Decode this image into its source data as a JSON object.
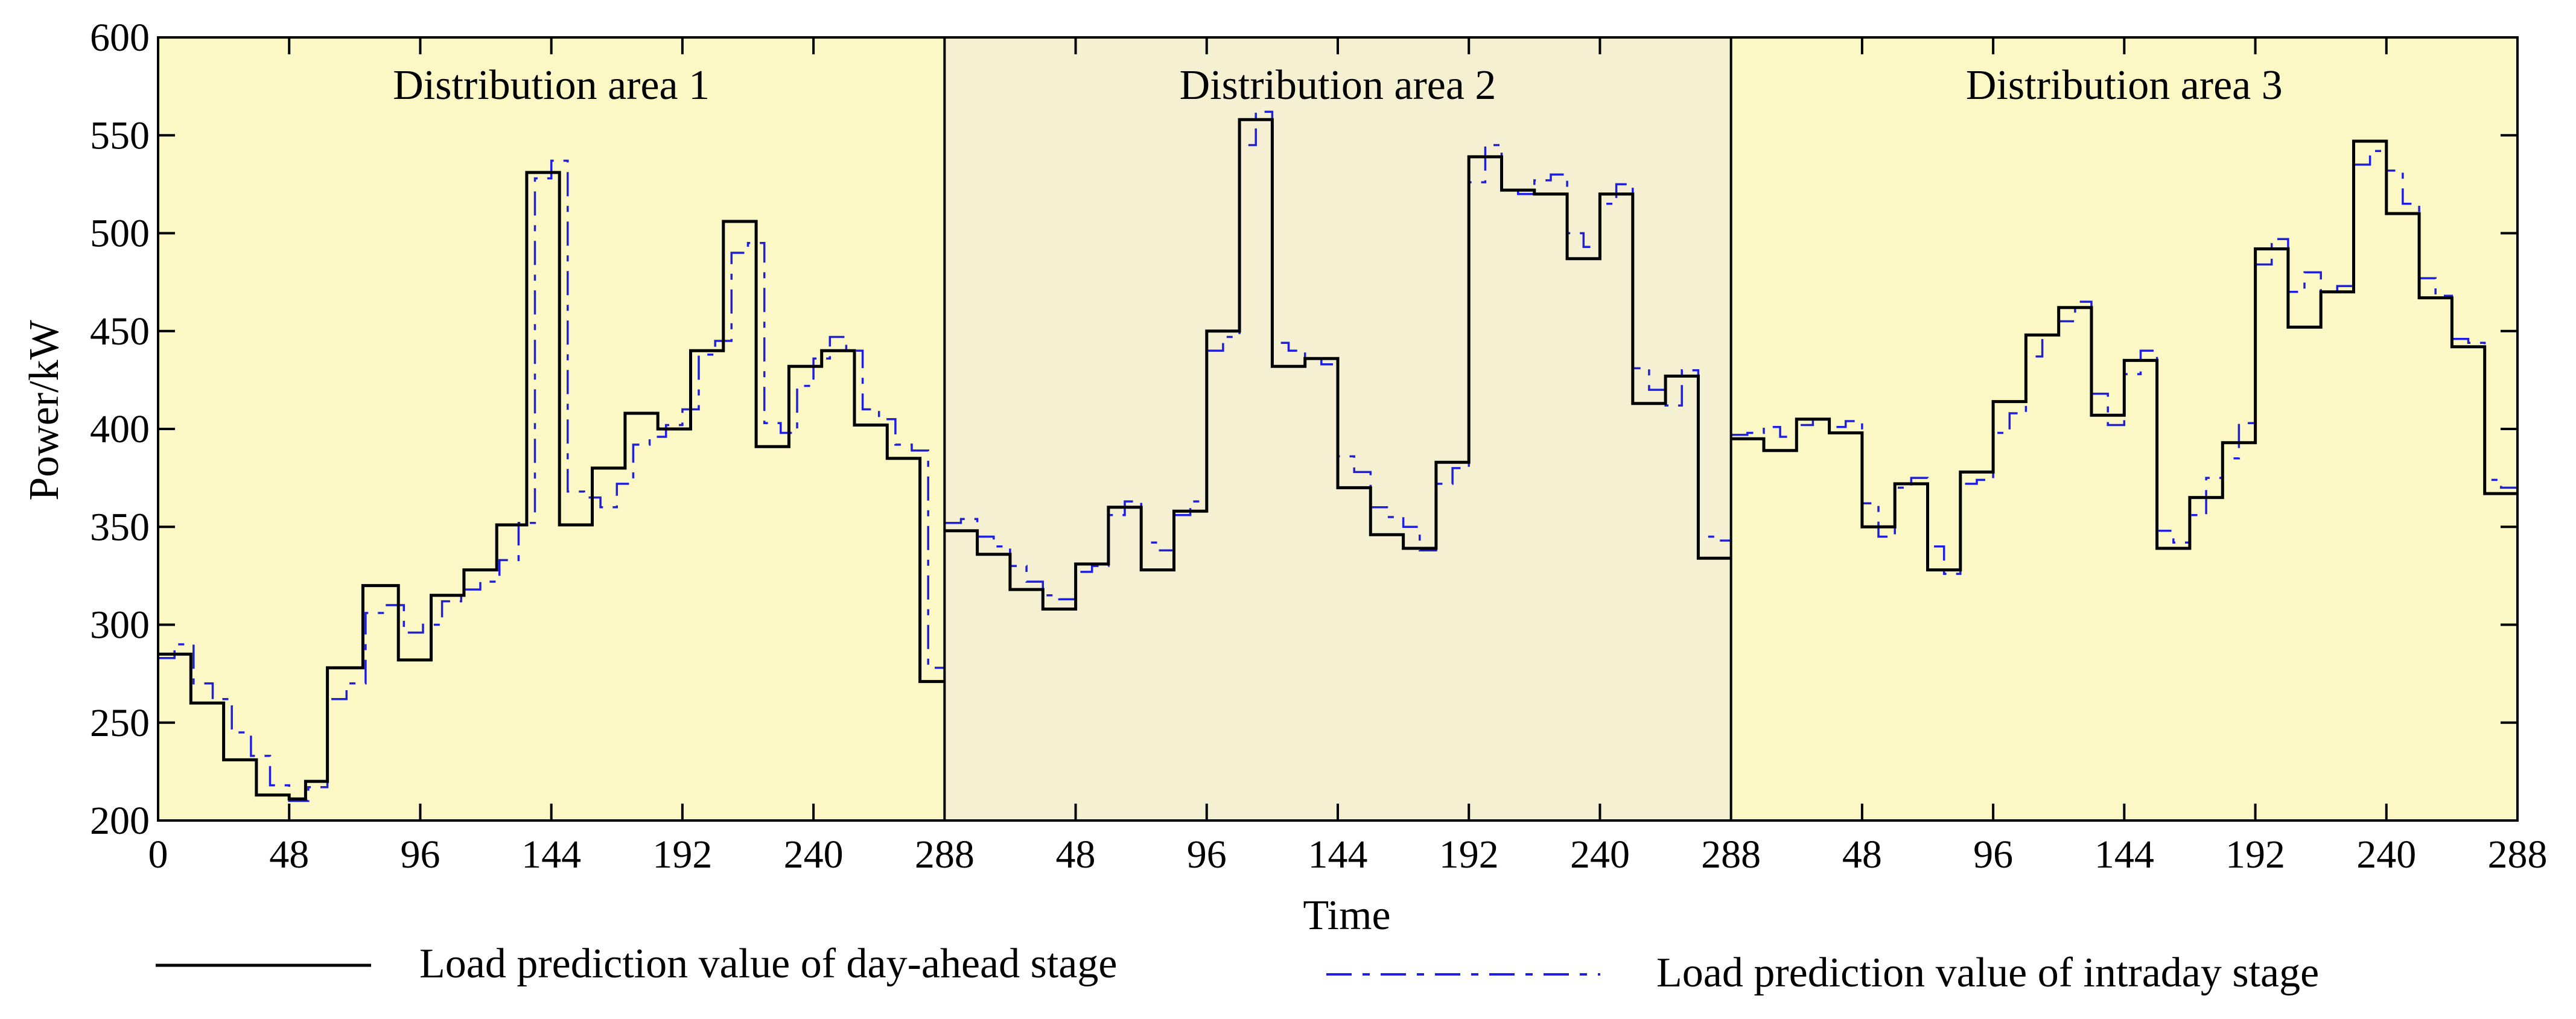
{
  "chart_data": {
    "type": "line",
    "step": true,
    "ylabel": "Power/kW",
    "xlabel": "Time",
    "ylim": [
      200,
      600
    ],
    "yticks": [
      200,
      250,
      300,
      350,
      400,
      450,
      500,
      550,
      600
    ],
    "xlim": [
      0,
      288
    ],
    "xticks": [
      0,
      48,
      96,
      144,
      192,
      240,
      288
    ],
    "grid": false,
    "legend_position": "bottom",
    "colors": {
      "dayahead": "#000000",
      "intraday": "#1f1fe0",
      "panel_light": "#fbf8c6",
      "panel_dark": "#f6f0d2"
    },
    "series_names": [
      "Load prediction value of day-ahead stage",
      "Load prediction value of intraday stage"
    ],
    "panels": [
      {
        "title": "Distribution area 1",
        "dayahead": [
          [
            0,
            285
          ],
          [
            12,
            260
          ],
          [
            24,
            231
          ],
          [
            36,
            213
          ],
          [
            48,
            211
          ],
          [
            54,
            220
          ],
          [
            62,
            278
          ],
          [
            75,
            320
          ],
          [
            88,
            282
          ],
          [
            100,
            315
          ],
          [
            112,
            328
          ],
          [
            124,
            351
          ],
          [
            135,
            531
          ],
          [
            147,
            351
          ],
          [
            159,
            380
          ],
          [
            171,
            408
          ],
          [
            183,
            400
          ],
          [
            195,
            440
          ],
          [
            207,
            506
          ],
          [
            219,
            391
          ],
          [
            231,
            432
          ],
          [
            243,
            440
          ],
          [
            255,
            402
          ],
          [
            267,
            385
          ],
          [
            279,
            271
          ],
          [
            288,
            271
          ]
        ],
        "intraday": [
          [
            0,
            283
          ],
          [
            6,
            290
          ],
          [
            13,
            270
          ],
          [
            20,
            262
          ],
          [
            27,
            245
          ],
          [
            34,
            233
          ],
          [
            41,
            218
          ],
          [
            48,
            210
          ],
          [
            55,
            217
          ],
          [
            62,
            262
          ],
          [
            69,
            270
          ],
          [
            76,
            306
          ],
          [
            83,
            310
          ],
          [
            90,
            296
          ],
          [
            97,
            300
          ],
          [
            104,
            312
          ],
          [
            111,
            318
          ],
          [
            118,
            322
          ],
          [
            125,
            333
          ],
          [
            132,
            352
          ],
          [
            138,
            528
          ],
          [
            144,
            537
          ],
          [
            150,
            368
          ],
          [
            156,
            365
          ],
          [
            162,
            360
          ],
          [
            168,
            372
          ],
          [
            174,
            392
          ],
          [
            180,
            396
          ],
          [
            186,
            402
          ],
          [
            192,
            410
          ],
          [
            198,
            438
          ],
          [
            204,
            445
          ],
          [
            210,
            490
          ],
          [
            216,
            495
          ],
          [
            222,
            403
          ],
          [
            228,
            398
          ],
          [
            234,
            422
          ],
          [
            240,
            436
          ],
          [
            246,
            447
          ],
          [
            252,
            440
          ],
          [
            258,
            410
          ],
          [
            264,
            405
          ],
          [
            270,
            392
          ],
          [
            276,
            389
          ],
          [
            282,
            278
          ],
          [
            288,
            274
          ]
        ]
      },
      {
        "title": "Distribution area 2",
        "dayahead": [
          [
            0,
            348
          ],
          [
            12,
            336
          ],
          [
            24,
            318
          ],
          [
            36,
            308
          ],
          [
            48,
            331
          ],
          [
            60,
            360
          ],
          [
            72,
            328
          ],
          [
            84,
            358
          ],
          [
            96,
            450
          ],
          [
            108,
            558
          ],
          [
            120,
            432
          ],
          [
            132,
            436
          ],
          [
            144,
            370
          ],
          [
            156,
            346
          ],
          [
            168,
            339
          ],
          [
            180,
            383
          ],
          [
            192,
            539
          ],
          [
            204,
            522
          ],
          [
            216,
            520
          ],
          [
            228,
            487
          ],
          [
            240,
            520
          ],
          [
            252,
            413
          ],
          [
            264,
            427
          ],
          [
            276,
            334
          ],
          [
            288,
            334
          ]
        ],
        "intraday": [
          [
            0,
            352
          ],
          [
            6,
            354
          ],
          [
            12,
            345
          ],
          [
            18,
            340
          ],
          [
            24,
            330
          ],
          [
            30,
            322
          ],
          [
            36,
            315
          ],
          [
            42,
            313
          ],
          [
            48,
            327
          ],
          [
            54,
            330
          ],
          [
            60,
            356
          ],
          [
            66,
            363
          ],
          [
            72,
            342
          ],
          [
            78,
            338
          ],
          [
            84,
            356
          ],
          [
            90,
            363
          ],
          [
            96,
            440
          ],
          [
            102,
            447
          ],
          [
            108,
            545
          ],
          [
            114,
            562
          ],
          [
            120,
            444
          ],
          [
            126,
            440
          ],
          [
            132,
            436
          ],
          [
            138,
            433
          ],
          [
            144,
            386
          ],
          [
            150,
            378
          ],
          [
            156,
            360
          ],
          [
            162,
            355
          ],
          [
            168,
            350
          ],
          [
            174,
            338
          ],
          [
            180,
            372
          ],
          [
            186,
            380
          ],
          [
            192,
            526
          ],
          [
            198,
            545
          ],
          [
            204,
            522
          ],
          [
            210,
            520
          ],
          [
            216,
            527
          ],
          [
            222,
            530
          ],
          [
            228,
            500
          ],
          [
            234,
            493
          ],
          [
            240,
            515
          ],
          [
            246,
            525
          ],
          [
            252,
            431
          ],
          [
            258,
            420
          ],
          [
            264,
            412
          ],
          [
            270,
            430
          ],
          [
            276,
            345
          ],
          [
            282,
            343
          ],
          [
            288,
            345
          ]
        ]
      },
      {
        "title": "Distribution area 3",
        "dayahead": [
          [
            0,
            395
          ],
          [
            12,
            389
          ],
          [
            24,
            405
          ],
          [
            36,
            398
          ],
          [
            48,
            350
          ],
          [
            60,
            372
          ],
          [
            72,
            328
          ],
          [
            84,
            378
          ],
          [
            96,
            414
          ],
          [
            108,
            448
          ],
          [
            120,
            462
          ],
          [
            132,
            407
          ],
          [
            144,
            435
          ],
          [
            156,
            339
          ],
          [
            168,
            365
          ],
          [
            180,
            393
          ],
          [
            192,
            492
          ],
          [
            204,
            452
          ],
          [
            216,
            470
          ],
          [
            228,
            547
          ],
          [
            240,
            510
          ],
          [
            252,
            467
          ],
          [
            264,
            442
          ],
          [
            276,
            367
          ],
          [
            288,
            367
          ]
        ],
        "intraday": [
          [
            0,
            397
          ],
          [
            6,
            398
          ],
          [
            12,
            401
          ],
          [
            18,
            396
          ],
          [
            24,
            402
          ],
          [
            30,
            405
          ],
          [
            36,
            401
          ],
          [
            42,
            404
          ],
          [
            48,
            362
          ],
          [
            54,
            345
          ],
          [
            60,
            370
          ],
          [
            66,
            375
          ],
          [
            72,
            340
          ],
          [
            78,
            326
          ],
          [
            84,
            372
          ],
          [
            90,
            374
          ],
          [
            96,
            398
          ],
          [
            102,
            408
          ],
          [
            108,
            437
          ],
          [
            114,
            448
          ],
          [
            120,
            455
          ],
          [
            126,
            465
          ],
          [
            132,
            418
          ],
          [
            138,
            402
          ],
          [
            144,
            428
          ],
          [
            150,
            440
          ],
          [
            156,
            348
          ],
          [
            162,
            342
          ],
          [
            168,
            356
          ],
          [
            174,
            375
          ],
          [
            180,
            385
          ],
          [
            186,
            403
          ],
          [
            192,
            484
          ],
          [
            198,
            497
          ],
          [
            204,
            470
          ],
          [
            210,
            480
          ],
          [
            216,
            470
          ],
          [
            222,
            473
          ],
          [
            228,
            535
          ],
          [
            234,
            542
          ],
          [
            240,
            532
          ],
          [
            246,
            515
          ],
          [
            252,
            477
          ],
          [
            258,
            468
          ],
          [
            264,
            446
          ],
          [
            270,
            444
          ],
          [
            276,
            374
          ],
          [
            282,
            370
          ],
          [
            288,
            372
          ]
        ]
      }
    ]
  }
}
